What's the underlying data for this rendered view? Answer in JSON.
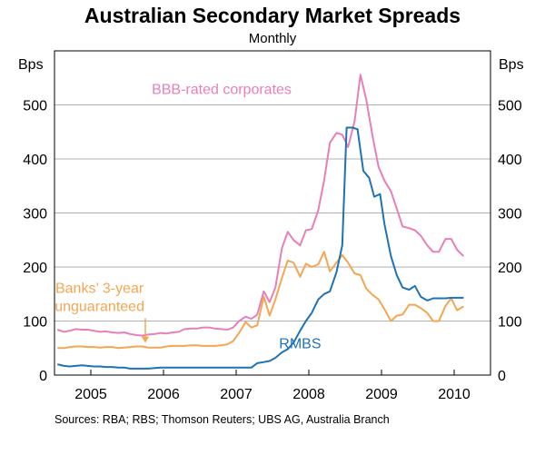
{
  "chart_data": {
    "type": "line",
    "title": "Australian Secondary Market Spreads",
    "subtitle": "Monthly",
    "y_unit_left": "Bps",
    "y_unit_right": "Bps",
    "ylim": [
      0,
      600
    ],
    "yticks": [
      0,
      100,
      200,
      300,
      400,
      500
    ],
    "xlim": [
      2004.5,
      2010.5
    ],
    "xtick_labels": [
      "2005",
      "2006",
      "2007",
      "2008",
      "2009",
      "2010"
    ],
    "grid": true,
    "source": "Sources: RBA; RBS; Thomson Reuters; UBS AG, Australia Branch",
    "colors": {
      "bbb": "#e97fb8",
      "banks": "#f4a652",
      "rmbs": "#1f72b5"
    },
    "series": [
      {
        "name": "BBB-rated corporates",
        "color": "#e97fb8",
        "points": [
          [
            2004.54,
            84
          ],
          [
            2004.63,
            80
          ],
          [
            2004.71,
            82
          ],
          [
            2004.79,
            85
          ],
          [
            2004.88,
            84
          ],
          [
            2004.96,
            84
          ],
          [
            2005.04,
            82
          ],
          [
            2005.13,
            80
          ],
          [
            2005.21,
            81
          ],
          [
            2005.29,
            79
          ],
          [
            2005.38,
            78
          ],
          [
            2005.46,
            79
          ],
          [
            2005.54,
            76
          ],
          [
            2005.63,
            74
          ],
          [
            2005.71,
            73
          ],
          [
            2005.79,
            75
          ],
          [
            2005.88,
            76
          ],
          [
            2005.96,
            78
          ],
          [
            2006.04,
            77
          ],
          [
            2006.13,
            79
          ],
          [
            2006.21,
            80
          ],
          [
            2006.29,
            85
          ],
          [
            2006.38,
            86
          ],
          [
            2006.46,
            86
          ],
          [
            2006.54,
            88
          ],
          [
            2006.63,
            88
          ],
          [
            2006.71,
            86
          ],
          [
            2006.79,
            85
          ],
          [
            2006.88,
            84
          ],
          [
            2006.96,
            88
          ],
          [
            2007.04,
            100
          ],
          [
            2007.13,
            108
          ],
          [
            2007.21,
            104
          ],
          [
            2007.29,
            112
          ],
          [
            2007.38,
            155
          ],
          [
            2007.46,
            135
          ],
          [
            2007.54,
            162
          ],
          [
            2007.63,
            235
          ],
          [
            2007.71,
            265
          ],
          [
            2007.79,
            250
          ],
          [
            2007.88,
            240
          ],
          [
            2007.96,
            268
          ],
          [
            2008.04,
            270
          ],
          [
            2008.13,
            305
          ],
          [
            2008.21,
            360
          ],
          [
            2008.29,
            430
          ],
          [
            2008.38,
            448
          ],
          [
            2008.46,
            445
          ],
          [
            2008.54,
            422
          ],
          [
            2008.63,
            470
          ],
          [
            2008.71,
            556
          ],
          [
            2008.79,
            510
          ],
          [
            2008.88,
            440
          ],
          [
            2008.96,
            385
          ],
          [
            2009.04,
            360
          ],
          [
            2009.13,
            340
          ],
          [
            2009.21,
            308
          ],
          [
            2009.29,
            275
          ],
          [
            2009.38,
            272
          ],
          [
            2009.46,
            268
          ],
          [
            2009.54,
            258
          ],
          [
            2009.63,
            240
          ],
          [
            2009.71,
            228
          ],
          [
            2009.79,
            228
          ],
          [
            2009.88,
            252
          ],
          [
            2009.96,
            252
          ],
          [
            2010.04,
            232
          ],
          [
            2010.13,
            220
          ]
        ]
      },
      {
        "name": "Banks’ 3-year unguaranteed",
        "color": "#f4a652",
        "points": [
          [
            2004.54,
            50
          ],
          [
            2004.63,
            50
          ],
          [
            2004.71,
            52
          ],
          [
            2004.79,
            53
          ],
          [
            2004.88,
            53
          ],
          [
            2004.96,
            52
          ],
          [
            2005.04,
            52
          ],
          [
            2005.13,
            51
          ],
          [
            2005.21,
            52
          ],
          [
            2005.29,
            52
          ],
          [
            2005.38,
            50
          ],
          [
            2005.46,
            51
          ],
          [
            2005.54,
            52
          ],
          [
            2005.63,
            53
          ],
          [
            2005.71,
            53
          ],
          [
            2005.79,
            51
          ],
          [
            2005.88,
            51
          ],
          [
            2005.96,
            51
          ],
          [
            2006.04,
            53
          ],
          [
            2006.13,
            54
          ],
          [
            2006.21,
            54
          ],
          [
            2006.29,
            54
          ],
          [
            2006.38,
            55
          ],
          [
            2006.46,
            55
          ],
          [
            2006.54,
            54
          ],
          [
            2006.63,
            54
          ],
          [
            2006.71,
            54
          ],
          [
            2006.79,
            55
          ],
          [
            2006.88,
            57
          ],
          [
            2006.96,
            63
          ],
          [
            2007.04,
            78
          ],
          [
            2007.13,
            98
          ],
          [
            2007.21,
            88
          ],
          [
            2007.29,
            92
          ],
          [
            2007.38,
            145
          ],
          [
            2007.46,
            110
          ],
          [
            2007.54,
            140
          ],
          [
            2007.63,
            180
          ],
          [
            2007.71,
            212
          ],
          [
            2007.79,
            208
          ],
          [
            2007.88,
            182
          ],
          [
            2007.96,
            206
          ],
          [
            2008.04,
            200
          ],
          [
            2008.13,
            205
          ],
          [
            2008.21,
            228
          ],
          [
            2008.29,
            192
          ],
          [
            2008.38,
            208
          ],
          [
            2008.46,
            222
          ],
          [
            2008.54,
            208
          ],
          [
            2008.63,
            188
          ],
          [
            2008.71,
            185
          ],
          [
            2008.79,
            160
          ],
          [
            2008.88,
            148
          ],
          [
            2008.96,
            140
          ],
          [
            2009.04,
            122
          ],
          [
            2009.13,
            100
          ],
          [
            2009.21,
            110
          ],
          [
            2009.29,
            112
          ],
          [
            2009.38,
            130
          ],
          [
            2009.46,
            130
          ],
          [
            2009.54,
            124
          ],
          [
            2009.63,
            115
          ],
          [
            2009.71,
            100
          ],
          [
            2009.79,
            100
          ],
          [
            2009.88,
            128
          ],
          [
            2009.96,
            142
          ],
          [
            2010.04,
            120
          ],
          [
            2010.13,
            127
          ]
        ]
      },
      {
        "name": "RMBS",
        "color": "#1f72b5",
        "points": [
          [
            2004.54,
            20
          ],
          [
            2004.63,
            17
          ],
          [
            2004.71,
            16
          ],
          [
            2004.79,
            17
          ],
          [
            2004.88,
            18
          ],
          [
            2004.96,
            17
          ],
          [
            2005.04,
            16
          ],
          [
            2005.13,
            16
          ],
          [
            2005.21,
            15
          ],
          [
            2005.29,
            15
          ],
          [
            2005.38,
            14
          ],
          [
            2005.46,
            14
          ],
          [
            2005.54,
            12
          ],
          [
            2005.63,
            12
          ],
          [
            2005.71,
            12
          ],
          [
            2005.79,
            12
          ],
          [
            2005.88,
            13
          ],
          [
            2005.96,
            14
          ],
          [
            2006.04,
            14
          ],
          [
            2006.13,
            14
          ],
          [
            2006.21,
            14
          ],
          [
            2006.29,
            14
          ],
          [
            2006.38,
            14
          ],
          [
            2006.46,
            14
          ],
          [
            2006.54,
            14
          ],
          [
            2006.63,
            14
          ],
          [
            2006.71,
            14
          ],
          [
            2006.79,
            14
          ],
          [
            2006.88,
            14
          ],
          [
            2006.96,
            14
          ],
          [
            2007.04,
            14
          ],
          [
            2007.13,
            14
          ],
          [
            2007.21,
            14
          ],
          [
            2007.29,
            22
          ],
          [
            2007.38,
            24
          ],
          [
            2007.46,
            26
          ],
          [
            2007.54,
            32
          ],
          [
            2007.63,
            42
          ],
          [
            2007.71,
            48
          ],
          [
            2007.79,
            60
          ],
          [
            2007.88,
            82
          ],
          [
            2007.96,
            100
          ],
          [
            2008.04,
            115
          ],
          [
            2008.13,
            140
          ],
          [
            2008.21,
            150
          ],
          [
            2008.29,
            155
          ],
          [
            2008.38,
            190
          ],
          [
            2008.46,
            240
          ],
          [
            2008.52,
            458
          ],
          [
            2008.6,
            458
          ],
          [
            2008.67,
            455
          ],
          [
            2008.75,
            378
          ],
          [
            2008.83,
            365
          ],
          [
            2008.9,
            330
          ],
          [
            2008.98,
            335
          ],
          [
            2009.04,
            280
          ],
          [
            2009.13,
            220
          ],
          [
            2009.21,
            185
          ],
          [
            2009.29,
            162
          ],
          [
            2009.38,
            158
          ],
          [
            2009.46,
            165
          ],
          [
            2009.54,
            145
          ],
          [
            2009.63,
            138
          ],
          [
            2009.71,
            142
          ],
          [
            2009.79,
            142
          ],
          [
            2009.88,
            142
          ],
          [
            2009.96,
            143
          ],
          [
            2010.04,
            143
          ],
          [
            2010.13,
            143
          ]
        ]
      }
    ],
    "annotations": [
      {
        "text": "BBB-rated corporates",
        "series": "BBB-rated corporates",
        "at": [
          2006.8,
          520
        ]
      },
      {
        "text_lines": [
          "Banks’ 3-year",
          "unguaranteed"
        ],
        "series": "Banks’ 3-year unguaranteed",
        "at": [
          2005.12,
          152
        ],
        "arrow_to": [
          2005.75,
          56
        ]
      },
      {
        "text": "RMBS",
        "series": "RMBS",
        "at": [
          2007.88,
          50
        ]
      }
    ]
  }
}
